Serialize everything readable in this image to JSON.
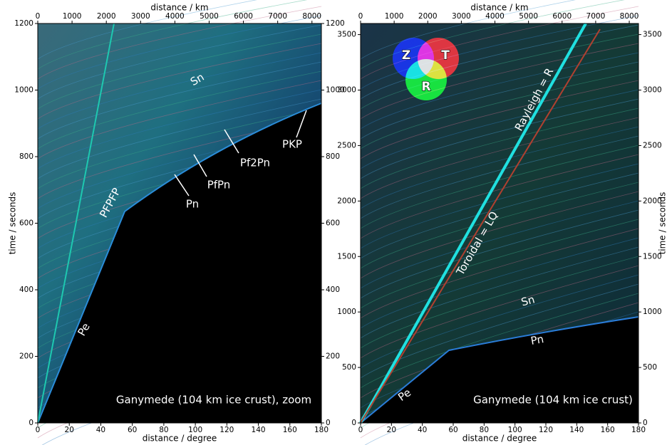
{
  "chart_data": [
    {
      "type": "seismogram-image",
      "title": "Ganymede (104 km ice crust), zoom",
      "xlabel": "distance / degree",
      "x2label": "distance / km",
      "ylabel": "time / seconds",
      "xlim": [
        0,
        180
      ],
      "xticks": [
        0,
        20,
        40,
        60,
        80,
        100,
        120,
        140,
        160,
        180
      ],
      "x2lim": [
        0,
        8275
      ],
      "x2ticks": [
        0,
        1000,
        2000,
        3000,
        4000,
        5000,
        6000,
        7000,
        8000
      ],
      "ylim": [
        0,
        1200
      ],
      "yticks": [
        0,
        200,
        400,
        600,
        800,
        1000,
        1200
      ],
      "annotations": [
        "Sn",
        "PKP",
        "Pf2Pn",
        "PfPn",
        "Pn",
        "PFPFP",
        "Pe"
      ]
    },
    {
      "type": "seismogram-image",
      "title": "Ganymede (104 km ice crust)",
      "xlabel": "distance / degree",
      "x2label": "distance / km",
      "ylabel": "time / seconds",
      "xlim": [
        0,
        180
      ],
      "xticks": [
        0,
        20,
        40,
        60,
        80,
        100,
        120,
        140,
        160,
        180
      ],
      "x2lim": [
        0,
        8275
      ],
      "x2ticks": [
        0,
        1000,
        2000,
        3000,
        4000,
        5000,
        6000,
        7000,
        8000
      ],
      "ylim": [
        0,
        3600
      ],
      "yticks": [
        0,
        500,
        1000,
        1500,
        2000,
        2500,
        3000,
        3500
      ],
      "annotations": [
        "Rayleigh = R",
        "Toroidal = LQ",
        "Sn",
        "Pn",
        "Pe"
      ],
      "legend": [
        "Z",
        "T",
        "R"
      ]
    }
  ]
}
